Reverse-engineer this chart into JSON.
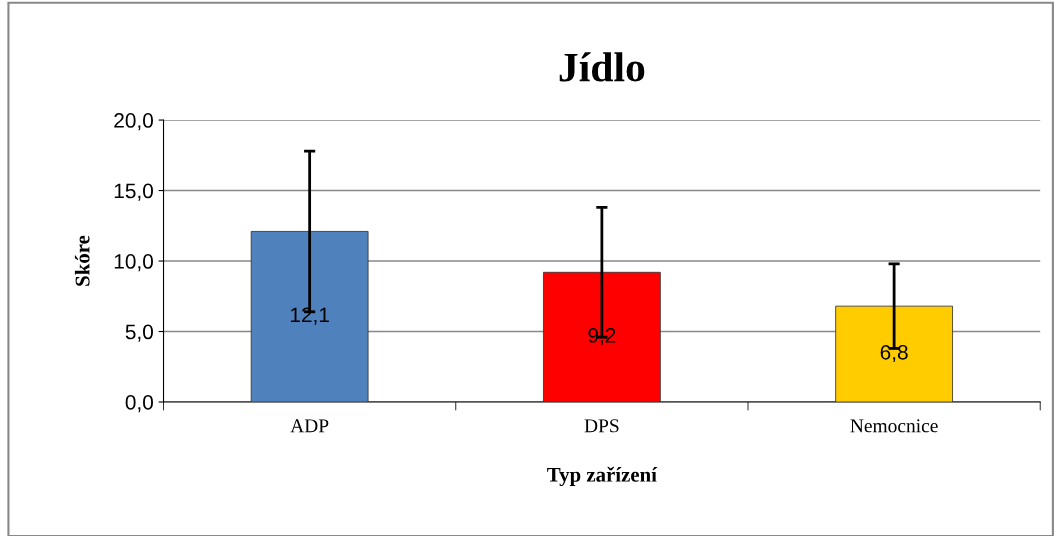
{
  "chart_data": {
    "type": "bar",
    "title": "Jídlo",
    "xlabel": "Typ zařízení",
    "ylabel": "Skóre",
    "categories": [
      "ADP",
      "DPS",
      "Nemocnice"
    ],
    "values": [
      12.1,
      9.2,
      6.8
    ],
    "colors": [
      "#4f81bd",
      "#ff0000",
      "#ffcc00"
    ],
    "errors": [
      5.7,
      4.6,
      3.0
    ],
    "value_labels": [
      "12,1",
      "9,2",
      "6,8"
    ],
    "ylim": [
      0,
      20
    ],
    "yticks": [
      {
        "value": 0,
        "label": "0,0"
      },
      {
        "value": 5,
        "label": "5,0"
      },
      {
        "value": 10,
        "label": "10,0"
      },
      {
        "value": 15,
        "label": "15,0"
      },
      {
        "value": 20,
        "label": "20,0"
      }
    ],
    "grid": "y",
    "legend": false
  }
}
